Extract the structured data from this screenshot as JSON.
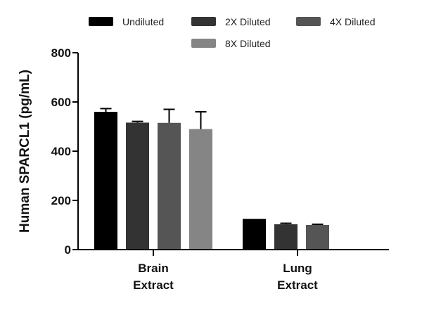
{
  "chart_data": {
    "type": "bar",
    "title": "",
    "xlabel": "",
    "ylabel": "Human SPARCL1 (pg/mL)",
    "ylim": [
      0,
      800
    ],
    "yticks": [
      0,
      200,
      400,
      600,
      800
    ],
    "legend_position": "top",
    "categories": [
      {
        "line1": "Brain",
        "line2": "Extract"
      },
      {
        "line1": "Lung",
        "line2": "Extract"
      }
    ],
    "series": [
      {
        "name": "Undiluted",
        "color": "#000000",
        "values": [
          560,
          125
        ],
        "errors": [
          13,
          0
        ]
      },
      {
        "name": "2X Diluted",
        "color": "#333333",
        "values": [
          516,
          103
        ],
        "errors": [
          5,
          4
        ]
      },
      {
        "name": "4X Diluted",
        "color": "#555555",
        "values": [
          515,
          100
        ],
        "errors": [
          55,
          3
        ]
      },
      {
        "name": "8X Diluted",
        "color": "#858585",
        "values": [
          490,
          null
        ],
        "errors": [
          70,
          null
        ]
      }
    ]
  }
}
